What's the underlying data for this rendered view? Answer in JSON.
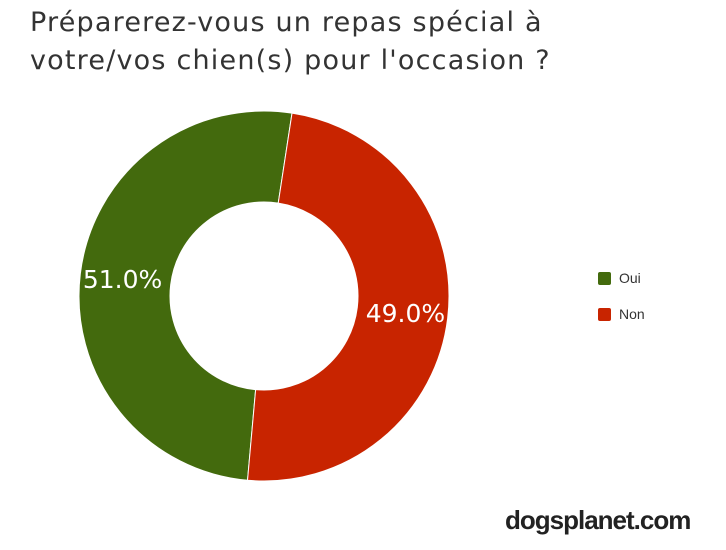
{
  "chart_data": {
    "type": "pie",
    "title": "Préparerez-vous un repas spécial à\nvotre/vos chien(s) pour l'occasion ?",
    "slices": [
      {
        "label": "Oui",
        "value": 51.0,
        "display": "51.0%",
        "color": "#436a0d"
      },
      {
        "label": "Non",
        "value": 49.0,
        "display": "49.0%",
        "color": "#c82400"
      }
    ],
    "legend_position": "right"
  },
  "watermark": "dogsplanet.com"
}
